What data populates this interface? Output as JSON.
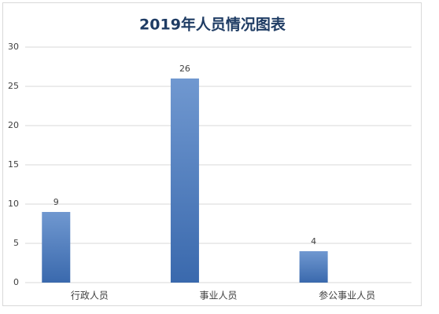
{
  "chart_data": {
    "type": "bar",
    "title": "2019年人员情况图表",
    "categories": [
      "行政人员",
      "事业人员",
      "参公事业人员"
    ],
    "values": [
      9,
      26,
      4
    ],
    "color": "#4a78bd",
    "ylim": [
      0,
      30
    ],
    "yticks": [
      0,
      5,
      10,
      15,
      20,
      25,
      30
    ],
    "grid": true
  }
}
